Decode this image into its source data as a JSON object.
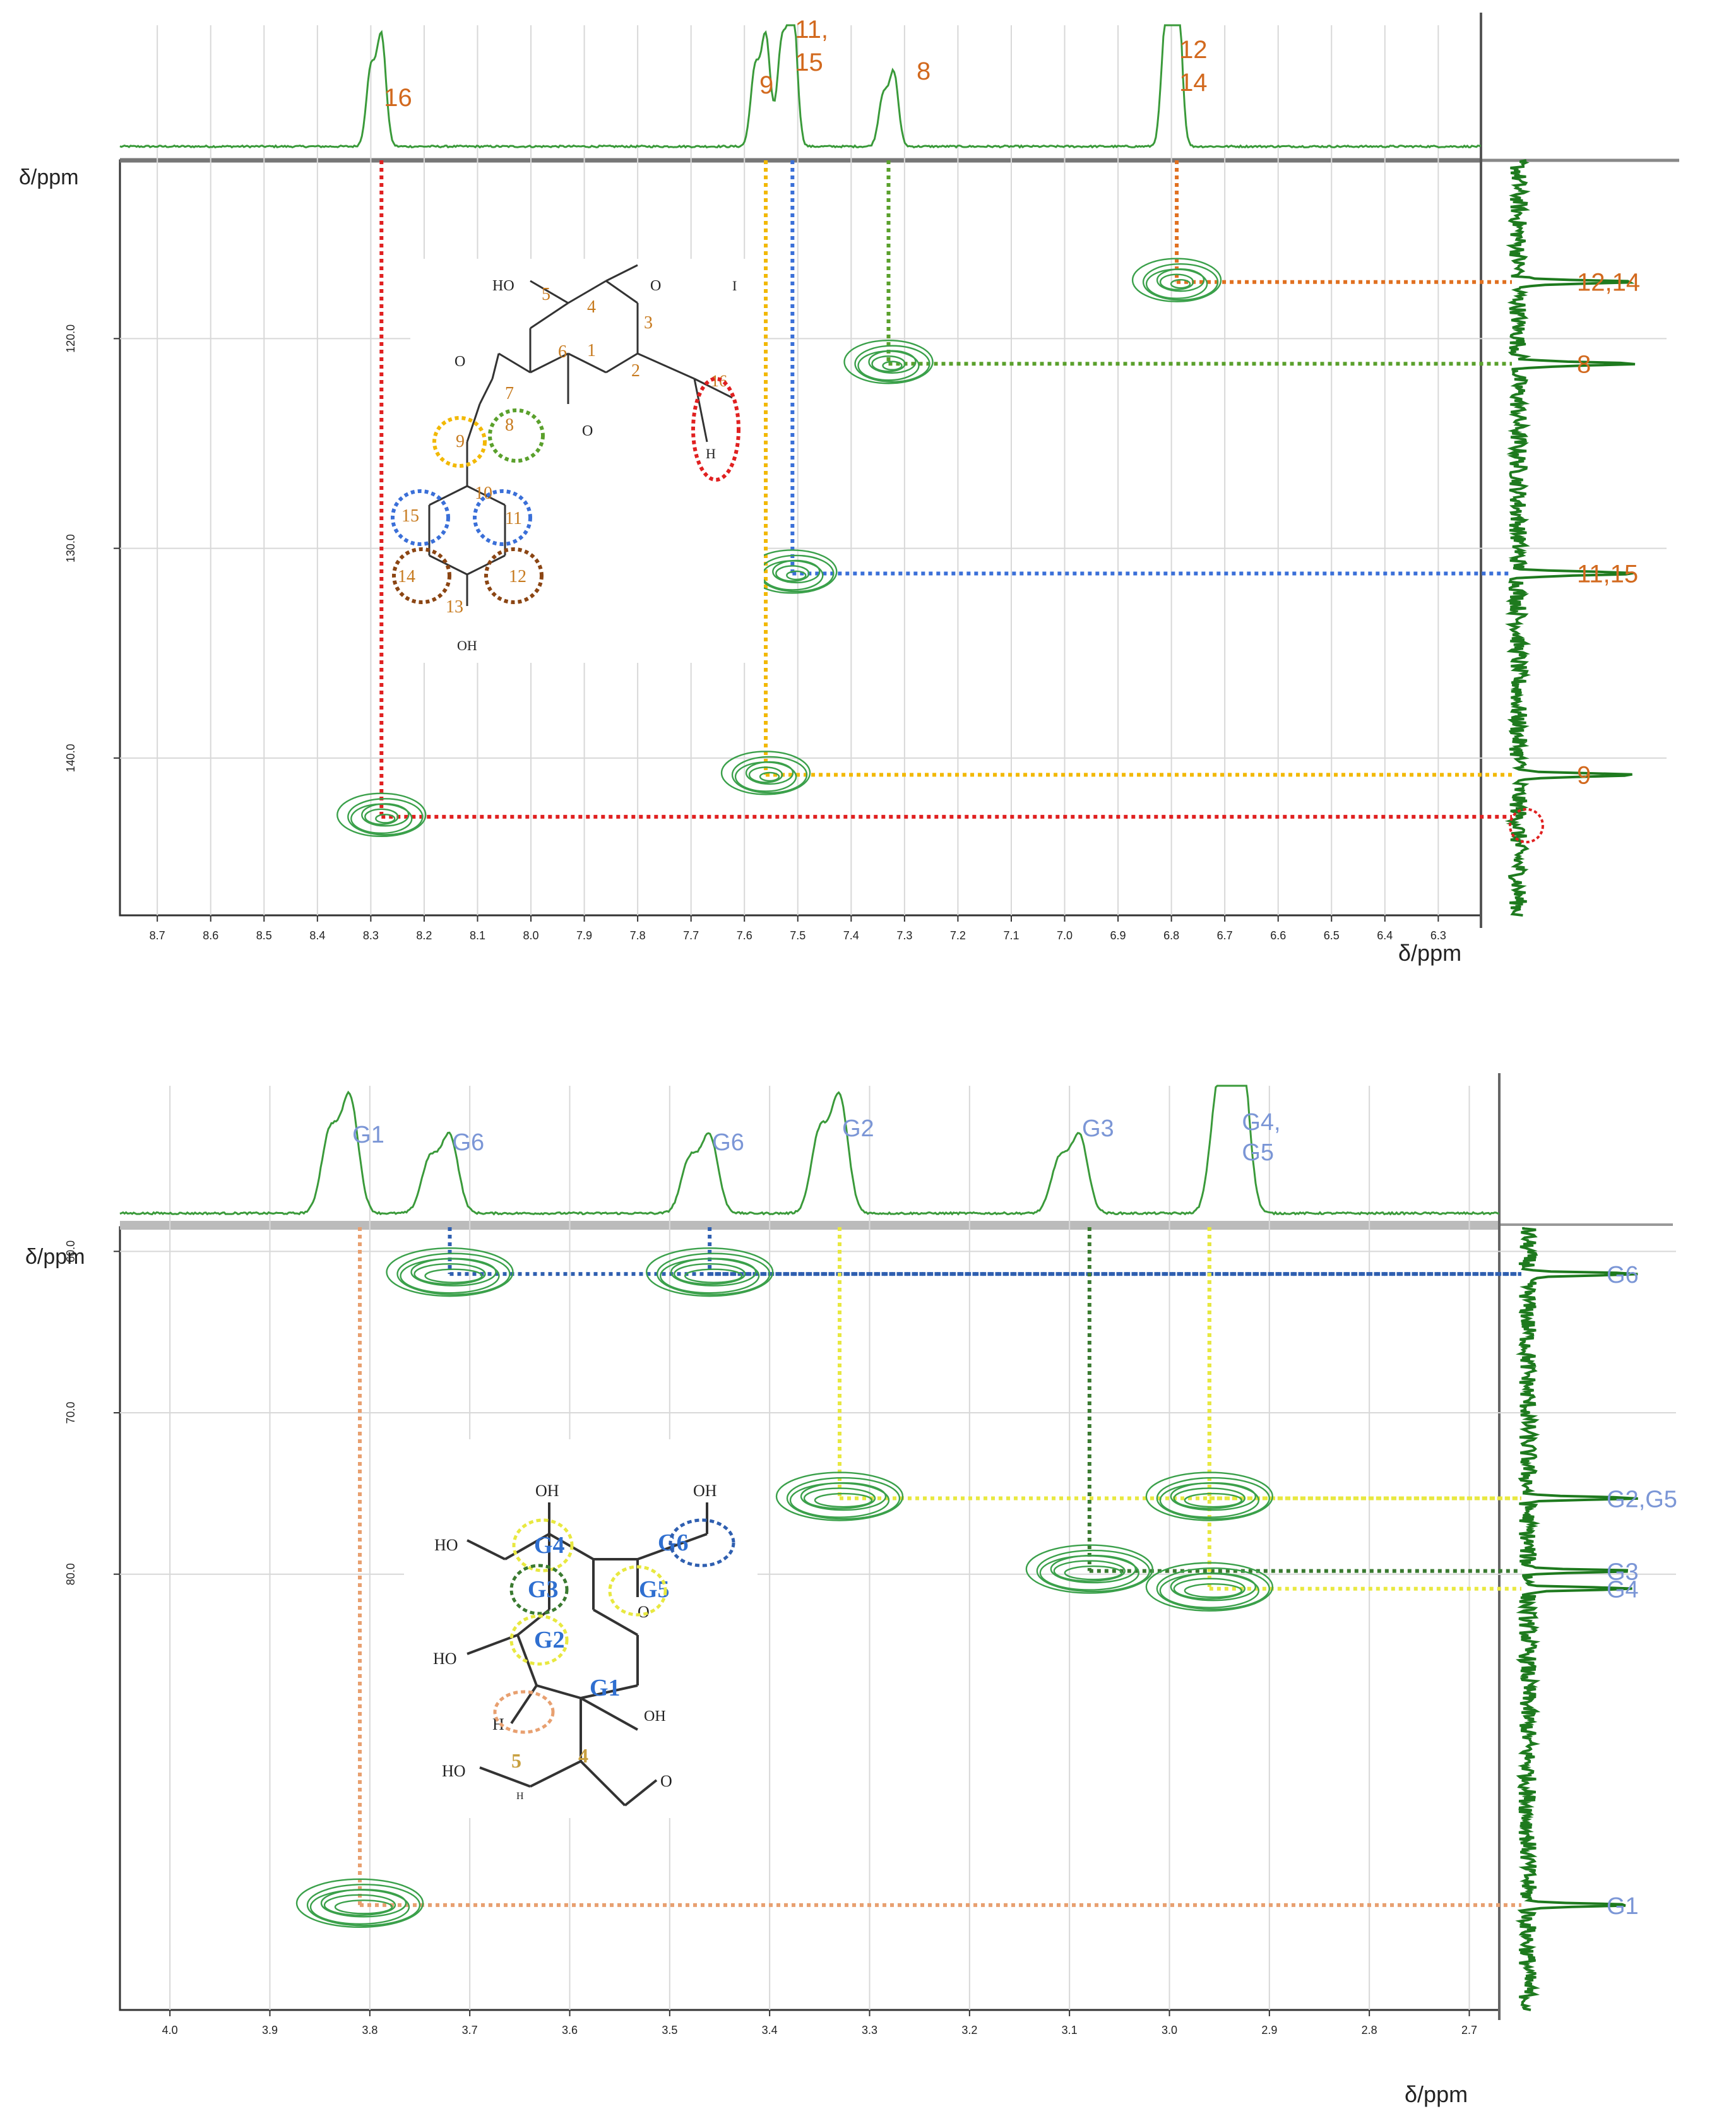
{
  "chart_data": [
    {
      "type": "scatter",
      "title": "",
      "xlabel": "δ/ppm",
      "ylabel": "δ/ppm",
      "xlim": [
        8.77,
        6.22
      ],
      "ylim": [
        111.5,
        147.5
      ],
      "x_ticks": [
        "8.7",
        "8.6",
        "8.5",
        "8.4",
        "8.3",
        "8.2",
        "8.1",
        "8.0",
        "7.9",
        "7.8",
        "7.7",
        "7.6",
        "7.5",
        "7.4",
        "7.3",
        "7.2",
        "7.1",
        "7.0",
        "6.9",
        "6.8",
        "6.7",
        "6.6",
        "6.5",
        "6.4",
        "6.3"
      ],
      "y_ticks": [
        "120.0",
        "130.0",
        "140.0"
      ],
      "label_color": "#d2691e",
      "proton_labels": [
        {
          "text": "16",
          "x": 8.28
        },
        {
          "text": "11,",
          "x": 7.51
        },
        {
          "text": "15",
          "x": 7.51
        },
        {
          "text": "9",
          "x": 7.56
        },
        {
          "text": "8",
          "x": 7.32
        },
        {
          "text": "12",
          "x": 6.79
        },
        {
          "text": "14",
          "x": 6.79
        }
      ],
      "carbon_labels": [
        {
          "text": "12,14",
          "y": 117.3
        },
        {
          "text": "8",
          "y": 121.2
        },
        {
          "text": "11,15",
          "y": 131.2
        },
        {
          "text": "9",
          "y": 140.8
        }
      ],
      "cross_peaks": [
        {
          "name": "12,14",
          "x": 6.79,
          "y": 117.3,
          "color": "#e07020"
        },
        {
          "name": "8",
          "x": 7.33,
          "y": 121.2,
          "color": "#5aa02c"
        },
        {
          "name": "11,15",
          "x": 7.51,
          "y": 131.2,
          "color": "#3a6fd8"
        },
        {
          "name": "9",
          "x": 7.56,
          "y": 140.8,
          "color": "#f2b800"
        },
        {
          "name": "16",
          "x": 8.28,
          "y": 142.8,
          "color": "#e02020"
        }
      ],
      "molecule_labels": {
        "ho_top": "HO",
        "c5": "5",
        "c4": "4",
        "c3": "3",
        "c6": "6",
        "c2": "2",
        "c1": "1",
        "c7": "7",
        "c8": "8",
        "c9": "9",
        "c16": "16",
        "c10": "10",
        "c11": "11",
        "c15": "15",
        "c14": "14",
        "c12": "12",
        "c13": "13",
        "oh_bottom": "OH",
        "h16": "H",
        "o_carbonyl1": "O",
        "o_carbonyl3": "O",
        "o_side": "O",
        "tick_mark": "I"
      }
    },
    {
      "type": "scatter",
      "title": "",
      "xlabel": "δ/ppm",
      "ylabel": "δ/ppm",
      "xlim": [
        4.05,
        2.67
      ],
      "ylim": [
        58.5,
        107.0
      ],
      "x_ticks": [
        "4.0",
        "3.9",
        "3.8",
        "3.7",
        "3.6",
        "3.5",
        "3.4",
        "3.3",
        "3.2",
        "3.1",
        "3.0",
        "2.9",
        "2.8",
        "2.7"
      ],
      "y_ticks": [
        "60.0",
        "70.0",
        "80.0"
      ],
      "label_color": "#7b96d6",
      "proton_labels": [
        {
          "text": "G1",
          "x": 3.82
        },
        {
          "text": "G6",
          "x": 3.72
        },
        {
          "text": "G6",
          "x": 3.46
        },
        {
          "text": "G2",
          "x": 3.33
        },
        {
          "text": "G3",
          "x": 3.09
        },
        {
          "text": "G4,",
          "x": 2.93
        },
        {
          "text": "G5",
          "x": 2.93
        }
      ],
      "carbon_labels": [
        {
          "text": "G6",
          "y": 61.4
        },
        {
          "text": "G2,G5",
          "y": 75.3
        },
        {
          "text": "G3",
          "y": 79.8
        },
        {
          "text": "G4",
          "y": 80.9
        },
        {
          "text": "G1",
          "y": 100.5
        }
      ],
      "cross_peaks": [
        {
          "name": "G6a",
          "x": 3.72,
          "y": 61.4,
          "color": "#2f5fb0"
        },
        {
          "name": "G6b",
          "x": 3.46,
          "y": 61.4,
          "color": "#2f5fb0"
        },
        {
          "name": "G2",
          "x": 3.33,
          "y": 75.3,
          "color": "#e8e840"
        },
        {
          "name": "G5",
          "x": 2.96,
          "y": 75.3,
          "color": "#e8e840"
        },
        {
          "name": "G3",
          "x": 3.08,
          "y": 79.8,
          "color": "#3a7a30"
        },
        {
          "name": "G4",
          "x": 2.96,
          "y": 80.9,
          "color": "#e8e840"
        },
        {
          "name": "G1",
          "x": 3.81,
          "y": 100.5,
          "color": "#e8a070"
        }
      ],
      "molecule_labels": {
        "oh1": "OH",
        "oh2": "OH",
        "ho1": "HO",
        "ho2": "HO",
        "ho3": "HO",
        "oh3": "OH",
        "g4": "G4",
        "g6": "G6",
        "g3": "G3",
        "g5": "G5",
        "g2": "G2",
        "g1": "G1",
        "o_ring": "O",
        "h": "H",
        "n5": "5",
        "n4": "4",
        "o_ald": "O",
        "tiny": "H"
      }
    }
  ]
}
